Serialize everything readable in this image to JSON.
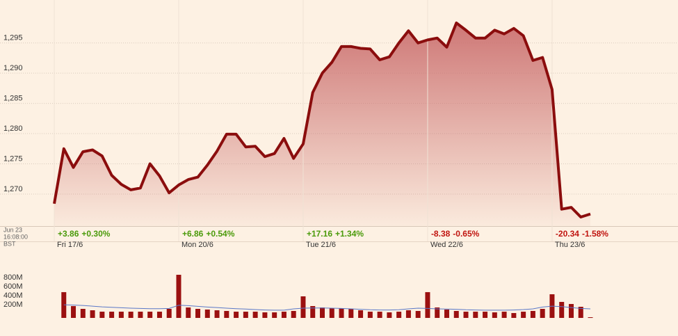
{
  "chart_data": {
    "type": "line",
    "color": "#8b0d0d",
    "fill": "#c96a6a",
    "grid": true,
    "ylim": [
      1264.7,
      1302.1
    ],
    "yticks": [
      {
        "value": 1270,
        "label": "1,270"
      },
      {
        "value": 1275,
        "label": "1,275"
      },
      {
        "value": 1280,
        "label": "1,280"
      },
      {
        "value": 1285,
        "label": "1,285"
      },
      {
        "value": 1290,
        "label": "1,290"
      },
      {
        "value": 1295,
        "label": "1,295"
      }
    ],
    "timestamp": [
      "Jun 23",
      "16:08:00",
      "BST"
    ],
    "categories": [
      "Fri 17/6",
      null,
      null,
      null,
      null,
      null,
      null,
      null,
      null,
      null,
      null,
      null,
      null,
      "Mon 20/6",
      null,
      null,
      null,
      null,
      null,
      null,
      null,
      null,
      null,
      null,
      null,
      null,
      "Tue 21/6",
      null,
      null,
      null,
      null,
      null,
      null,
      null,
      null,
      null,
      null,
      null,
      null,
      "Wed 22/6",
      null,
      null,
      null,
      null,
      null,
      null,
      null,
      null,
      null,
      null,
      null,
      null,
      "Thu 23/6",
      null,
      null,
      null,
      null
    ],
    "values": [
      1268.4,
      1277.5,
      1274.4,
      1277.0,
      1277.3,
      1276.3,
      1273.1,
      1271.6,
      1270.7,
      1271.0,
      1275.0,
      1273.0,
      1270.2,
      1271.5,
      1272.4,
      1272.8,
      1274.8,
      1277.1,
      1279.9,
      1279.9,
      1277.8,
      1277.9,
      1276.2,
      1276.7,
      1279.2,
      1275.9,
      1278.3,
      1286.8,
      1290.0,
      1291.8,
      1294.4,
      1294.4,
      1294.1,
      1294.0,
      1292.2,
      1292.7,
      1295.0,
      1297.0,
      1295.0,
      1295.5,
      1295.8,
      1294.3,
      1298.3,
      1297.1,
      1295.8,
      1295.8,
      1297.1,
      1296.5,
      1297.4,
      1296.2,
      1292.1,
      1292.6,
      1287.3,
      1267.5,
      1267.8,
      1266.2,
      1266.7
    ],
    "day_changes": [
      {
        "change": "+3.86",
        "percent": "+0.30%",
        "color": "#4a9a0a"
      },
      {
        "change": "+6.86",
        "percent": "+0.54%",
        "color": "#4a9a0a"
      },
      {
        "change": "+17.16",
        "percent": "+1.34%",
        "color": "#4a9a0a"
      },
      {
        "change": "-8.38",
        "percent": "-0.65%",
        "color": "#c0140f"
      },
      {
        "change": "-20.34",
        "percent": "-1.58%",
        "color": "#c0140f"
      }
    ],
    "volume": {
      "type": "bar",
      "color": "#9b1010",
      "ylim": [
        0,
        1000
      ],
      "yticks": [
        {
          "value": 200,
          "label": "200M"
        },
        {
          "value": 400,
          "label": "400M"
        },
        {
          "value": 600,
          "label": "600M"
        },
        {
          "value": 800,
          "label": "800M"
        }
      ],
      "values": [
        null,
        570,
        262,
        200,
        169,
        138,
        138,
        138,
        138,
        138,
        138,
        138,
        200,
        954,
        231,
        200,
        185,
        169,
        154,
        138,
        138,
        138,
        123,
        123,
        138,
        154,
        477,
        262,
        231,
        215,
        215,
        200,
        169,
        138,
        138,
        123,
        138,
        169,
        154,
        570,
        231,
        185,
        154,
        138,
        138,
        138,
        123,
        138,
        108,
        138,
        154,
        200,
        523,
        354,
        308,
        246,
        15
      ],
      "average": {
        "color": "#5a78c8",
        "values": [
          null,
          290,
          285,
          275,
          260,
          245,
          235,
          225,
          215,
          210,
          205,
          205,
          210,
          280,
          270,
          255,
          240,
          230,
          215,
          205,
          195,
          185,
          175,
          170,
          170,
          200,
          215,
          220,
          220,
          215,
          210,
          200,
          190,
          180,
          175,
          175,
          180,
          200,
          215,
          210,
          200,
          195,
          190,
          180,
          175,
          170,
          170,
          170,
          175,
          185,
          200,
          240,
          260,
          250,
          230,
          210,
          200
        ]
      }
    }
  }
}
